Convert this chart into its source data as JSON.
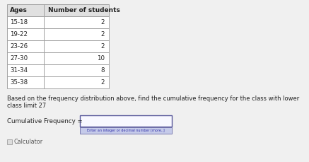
{
  "table_headers": [
    "Ages",
    "Number of students"
  ],
  "table_rows": [
    [
      "15-18",
      "2"
    ],
    [
      "19-22",
      "2"
    ],
    [
      "23-26",
      "2"
    ],
    [
      "27-30",
      "10"
    ],
    [
      "31-34",
      "8"
    ],
    [
      "35-38",
      "2"
    ]
  ],
  "question_line1": "Based on the frequency distribution above, find the cumulative frequency for the class with lower",
  "question_line2": "class limit 27",
  "label_text": "Cumulative Frequency =",
  "hint_text": "Enter an integer or decimal number [more..]",
  "calculator_text": "Calculator",
  "bg_color": "#f0f0f0",
  "table_bg": "#ffffff",
  "header_bg": "#e0e0e0",
  "border_color": "#999999",
  "text_color": "#222222",
  "input_box_facecolor": "#f8f8ff",
  "input_border_color": "#555599",
  "hint_bg": "#c5cae9",
  "hint_text_color": "#3333aa",
  "calc_check_color": "#aaaaaa"
}
